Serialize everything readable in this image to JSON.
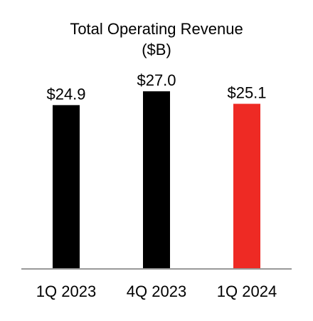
{
  "chart_data": {
    "type": "bar",
    "title": "Total Operating Revenue",
    "subtitle": "($B)",
    "categories": [
      "1Q 2023",
      "4Q 2023",
      "1Q 2024"
    ],
    "values": [
      24.9,
      27.0,
      25.1
    ],
    "data_labels": [
      "$24.9",
      "$27.0",
      "$25.1"
    ],
    "bar_colors": [
      "#000000",
      "#000000",
      "#ee2a24"
    ],
    "ylim": [
      0,
      27.0
    ],
    "grid": false,
    "legend": "none"
  }
}
